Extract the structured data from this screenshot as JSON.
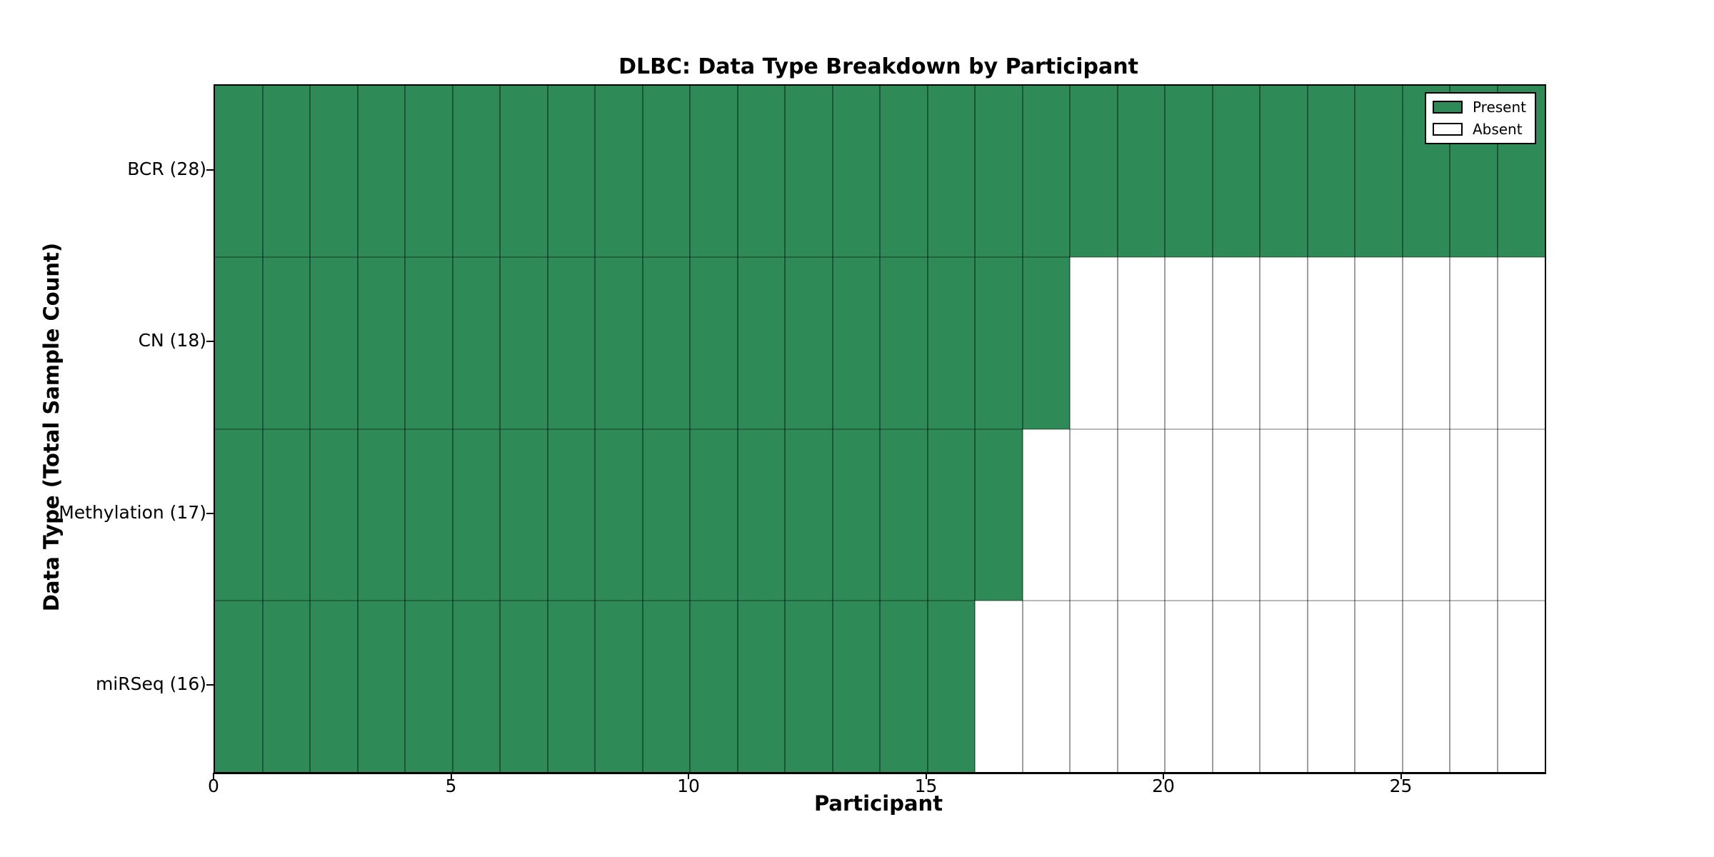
{
  "chart_data": {
    "type": "heatmap",
    "title": "DLBC: Data Type Breakdown by Participant",
    "xlabel": "Participant",
    "ylabel": "Data Type (Total Sample Count)",
    "n_participants": 28,
    "x_range": [
      0,
      28
    ],
    "x_ticks": [
      0,
      5,
      10,
      15,
      20,
      25
    ],
    "grid": true,
    "rows": [
      {
        "label": "BCR (28)",
        "data_type": "BCR",
        "total_sample_count": 28,
        "present_count": 28,
        "absent_count": 0
      },
      {
        "label": "CN (18)",
        "data_type": "CN",
        "total_sample_count": 18,
        "present_count": 18,
        "absent_count": 10
      },
      {
        "label": "Methylation (17)",
        "data_type": "Methylation",
        "total_sample_count": 17,
        "present_count": 17,
        "absent_count": 11
      },
      {
        "label": "miRSeq (16)",
        "data_type": "miRSeq",
        "total_sample_count": 16,
        "present_count": 16,
        "absent_count": 12
      }
    ],
    "legend": {
      "position": "upper right",
      "entries": [
        {
          "label": "Present",
          "color": "#2e8b57"
        },
        {
          "label": "Absent",
          "color": "#ffffff"
        }
      ]
    },
    "colors": {
      "present": "#2e8b57",
      "absent": "#ffffff"
    }
  }
}
